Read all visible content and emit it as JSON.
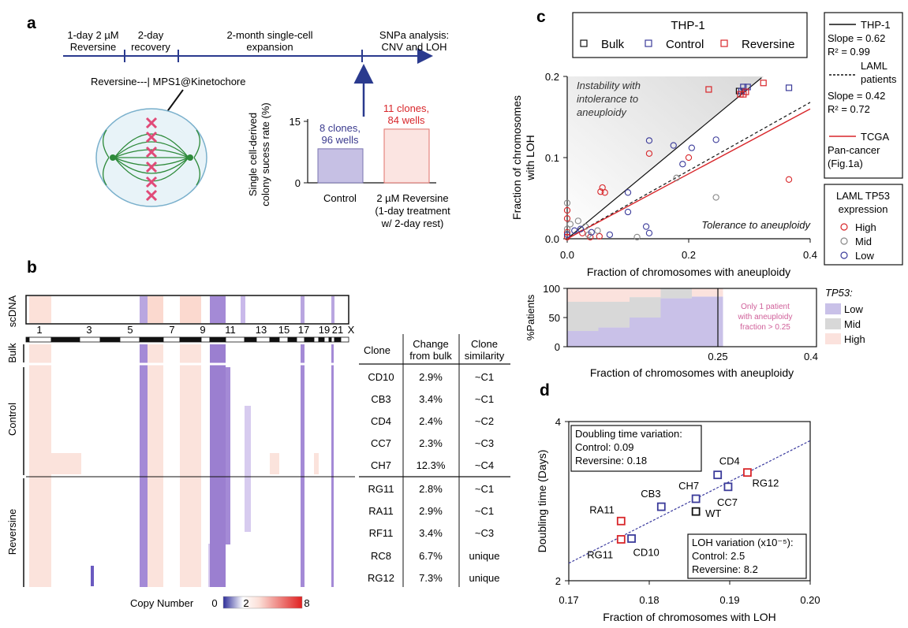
{
  "panel_labels": {
    "a": "a",
    "b": "b",
    "c": "c",
    "d": "d"
  },
  "panel_a": {
    "timeline": [
      {
        "lines": [
          "1-day 2 µM",
          "Reversine"
        ]
      },
      {
        "lines": [
          "2-day",
          "recovery"
        ]
      },
      {
        "lines": [
          "2-month single-cell",
          "expansion"
        ]
      },
      {
        "lines": [
          "SNPa analysis:",
          "CNV and LOH"
        ]
      }
    ],
    "mechanism_label": "Reversine---| MPS1@Kinetochore",
    "bar_ylabel": [
      "Single cell-derived",
      "colony sucess rate (%)"
    ],
    "bar_ytick_15": "15",
    "bar_ytick_0": "0",
    "bars": [
      {
        "label": "Control",
        "annot": [
          "8 clones,",
          "96 wells"
        ],
        "value": 8.3,
        "fill": "#c6c0e4",
        "stroke": "#7a74b0",
        "text_color": "#3a3a8e"
      },
      {
        "label": "2 µM Reversine",
        "annot": [
          "11 clones,",
          "84 wells"
        ],
        "value": 13.1,
        "fill": "#fbe4e1",
        "stroke": "#e0706a",
        "text_color": "#d8262a"
      }
    ],
    "bar_xlabel_extra": [
      "(1-day treatment",
      "w/ 2-day rest)"
    ]
  },
  "panel_b": {
    "sc_label": "scDNA",
    "chromosomes": [
      "1",
      "3",
      "5",
      "7",
      "9",
      "11",
      "13",
      "15",
      "17",
      "19",
      "21",
      "X"
    ],
    "group_labels": {
      "bulk": "Bulk",
      "control": "Control",
      "reversine": "Reversine"
    },
    "table_headers": [
      [
        "Clone"
      ],
      [
        "Change",
        "from bulk"
      ],
      [
        "Clone",
        "similarity"
      ]
    ],
    "rows": [
      {
        "clone": "CD10",
        "change": "2.9%",
        "sim": "~C1"
      },
      {
        "clone": "CB3",
        "change": "3.4%",
        "sim": "~C1"
      },
      {
        "clone": "CD4",
        "change": "2.4%",
        "sim": "~C2"
      },
      {
        "clone": "CC7",
        "change": "2.3%",
        "sim": "~C3"
      },
      {
        "clone": "CH7",
        "change": "12.3%",
        "sim": "~C4"
      },
      {
        "clone": "RG11",
        "change": "2.8%",
        "sim": "~C1"
      },
      {
        "clone": "RA11",
        "change": "2.9%",
        "sim": "~C1"
      },
      {
        "clone": "RF11",
        "change": "3.4%",
        "sim": "~C3"
      },
      {
        "clone": "RC8",
        "change": "6.7%",
        "sim": "unique"
      },
      {
        "clone": "RG12",
        "change": "7.3%",
        "sim": "unique"
      }
    ],
    "legend": {
      "title": "Copy Number",
      "ticks": [
        "0",
        "2",
        "8"
      ]
    }
  },
  "panel_c": {
    "scatter_legend_title": "THP-1",
    "scatter_legend": [
      "Bulk",
      "Control",
      "Reversine"
    ],
    "xlabel": "Fraction of chromosomes with aneuploidy",
    "ylabel": [
      "Fraction of chromosomes",
      "with LOH"
    ],
    "xticks": [
      "0.0",
      "0.2",
      "0.4"
    ],
    "yticks": [
      "0.0",
      "0.1",
      "0.2"
    ],
    "annotations": {
      "instability": [
        "Instability with",
        "intolerance to",
        "aneuploidy"
      ],
      "tolerance": "Tolerance to aneuploidy"
    },
    "fit_legend": [
      [
        "THP-1",
        "Slope = 0.62",
        "R² = 0.99"
      ],
      [
        "LAML",
        "patients",
        "Slope = 0.42",
        "R² = 0.72"
      ],
      [
        "TCGA",
        "Pan-cancer",
        "(Fig.1a)"
      ]
    ],
    "tp53_legend_title": [
      "LAML TP53",
      "expression"
    ],
    "tp53_legend": [
      "High",
      "Mid",
      "Low"
    ],
    "bar_ylabel": "%Patients",
    "bar_yticks": [
      "0",
      "50",
      "100"
    ],
    "bar_xticks": [
      "0.25",
      "0.4"
    ],
    "bar_xlabel": "Fraction of chromosomes with aneuploidy",
    "bar_note": [
      "Only 1 patient",
      "with aneuploidy",
      "fraction > 0.25"
    ],
    "bar_legend_title": "TP53:",
    "bar_legend": [
      "Low",
      "Mid",
      "High"
    ]
  },
  "chart_data": [
    {
      "type": "scatter",
      "title": "THP-1",
      "xlabel": "Fraction of chromosomes with aneuploidy",
      "ylabel": "Fraction of chromosomes with LOH",
      "xlim": [
        0,
        0.4
      ],
      "ylim": [
        0,
        0.2
      ],
      "fits": [
        {
          "name": "THP-1",
          "slope": 0.62,
          "r2": 0.99,
          "intercept": 0,
          "style": "solid",
          "color": "#111111"
        },
        {
          "name": "LAML patients",
          "slope": 0.42,
          "r2": 0.72,
          "intercept": 0,
          "style": "dashed",
          "color": "#111111"
        },
        {
          "name": "TCGA Pan-cancer",
          "slope": 0.4,
          "intercept": 0,
          "style": "solid",
          "color": "#d8262a"
        }
      ],
      "thp1_points": [
        {
          "group": "Bulk",
          "x": 0.283,
          "y": 0.182
        },
        {
          "group": "Control",
          "x": 0.29,
          "y": 0.187
        },
        {
          "group": "Control",
          "x": 0.297,
          "y": 0.187
        },
        {
          "group": "Control",
          "x": 0.287,
          "y": 0.182
        },
        {
          "group": "Control",
          "x": 0.365,
          "y": 0.186
        },
        {
          "group": "Reversine",
          "x": 0.233,
          "y": 0.184
        },
        {
          "group": "Reversine",
          "x": 0.29,
          "y": 0.178
        },
        {
          "group": "Reversine",
          "x": 0.285,
          "y": 0.178
        },
        {
          "group": "Reversine",
          "x": 0.323,
          "y": 0.192
        },
        {
          "group": "Reversine",
          "x": 0.294,
          "y": 0.181
        }
      ],
      "laml_points": [
        {
          "tp53": "High",
          "x": 0.0,
          "y": 0.035
        },
        {
          "tp53": "High",
          "x": 0.0,
          "y": 0.025
        },
        {
          "tp53": "High",
          "x": 0.0,
          "y": 0.008
        },
        {
          "tp53": "High",
          "x": 0.0,
          "y": 0.002
        },
        {
          "tp53": "High",
          "x": 0.025,
          "y": 0.007
        },
        {
          "tp53": "High",
          "x": 0.038,
          "y": 0.002
        },
        {
          "tp53": "High",
          "x": 0.055,
          "y": 0.058
        },
        {
          "tp53": "High",
          "x": 0.058,
          "y": 0.063
        },
        {
          "tp53": "High",
          "x": 0.062,
          "y": 0.057
        },
        {
          "tp53": "High",
          "x": 0.053,
          "y": 0.003
        },
        {
          "tp53": "High",
          "x": 0.135,
          "y": 0.105
        },
        {
          "tp53": "High",
          "x": 0.2,
          "y": 0.1
        },
        {
          "tp53": "High",
          "x": 0.365,
          "y": 0.073
        },
        {
          "tp53": "Mid",
          "x": 0.0,
          "y": 0.044
        },
        {
          "tp53": "Mid",
          "x": 0.0,
          "y": 0.012
        },
        {
          "tp53": "Mid",
          "x": 0.005,
          "y": 0.018
        },
        {
          "tp53": "Mid",
          "x": 0.018,
          "y": 0.022
        },
        {
          "tp53": "Mid",
          "x": 0.03,
          "y": 0.015
        },
        {
          "tp53": "Mid",
          "x": 0.035,
          "y": 0.005
        },
        {
          "tp53": "Mid",
          "x": 0.05,
          "y": 0.01
        },
        {
          "tp53": "Mid",
          "x": 0.115,
          "y": 0.002
        },
        {
          "tp53": "Mid",
          "x": 0.18,
          "y": 0.075
        },
        {
          "tp53": "Mid",
          "x": 0.245,
          "y": 0.051
        },
        {
          "tp53": "Low",
          "x": 0.0,
          "y": 0.005
        },
        {
          "tp53": "Low",
          "x": 0.012,
          "y": 0.01
        },
        {
          "tp53": "Low",
          "x": 0.022,
          "y": 0.012
        },
        {
          "tp53": "Low",
          "x": 0.04,
          "y": 0.008
        },
        {
          "tp53": "Low",
          "x": 0.07,
          "y": 0.005
        },
        {
          "tp53": "Low",
          "x": 0.1,
          "y": 0.057
        },
        {
          "tp53": "Low",
          "x": 0.1,
          "y": 0.033
        },
        {
          "tp53": "Low",
          "x": 0.13,
          "y": 0.015
        },
        {
          "tp53": "Low",
          "x": 0.135,
          "y": 0.121
        },
        {
          "tp53": "Low",
          "x": 0.135,
          "y": 0.007
        },
        {
          "tp53": "Low",
          "x": 0.175,
          "y": 0.115
        },
        {
          "tp53": "Low",
          "x": 0.19,
          "y": 0.092
        },
        {
          "tp53": "Low",
          "x": 0.205,
          "y": 0.112
        },
        {
          "tp53": "Low",
          "x": 0.245,
          "y": 0.122
        }
      ]
    },
    {
      "type": "area",
      "ylabel": "%Patients",
      "xlabel": "Fraction of chromosomes with aneuploidy",
      "xlim": [
        0,
        0.4
      ],
      "ylim": [
        0,
        100
      ],
      "x_edges": [
        0,
        0.05,
        0.1,
        0.15,
        0.2,
        0.25
      ],
      "series": [
        {
          "name": "Low",
          "values": [
            27,
            33,
            50,
            83,
            86
          ]
        },
        {
          "name": "Mid",
          "values": [
            50,
            44,
            35,
            17,
            0
          ]
        },
        {
          "name": "High",
          "values": [
            23,
            23,
            15,
            0,
            14
          ]
        }
      ]
    },
    {
      "type": "scatter",
      "xlabel": "Fraction of chromosomes with LOH",
      "ylabel": "Doubling time (Days)",
      "xlim": [
        0.17,
        0.2
      ],
      "ylim": [
        2,
        4
      ],
      "xticks": [
        "0.17",
        "0.18",
        "0.19",
        "0.20"
      ],
      "yticks": [
        "4",
        "2"
      ],
      "variation_box": [
        "Doubling time variation:",
        "Control: 0.09",
        "Reversine: 0.18"
      ],
      "loh_box": [
        "LOH variation (x10⁻⁵):",
        "Control: 2.5",
        "Reversine: 8.2"
      ],
      "points": [
        {
          "name": "RA11",
          "group": "Reversine",
          "x": 0.1765,
          "y": 2.75
        },
        {
          "name": "RG11",
          "group": "Reversine",
          "x": 0.1765,
          "y": 2.52
        },
        {
          "name": "CD10",
          "group": "Control",
          "x": 0.1778,
          "y": 2.53
        },
        {
          "name": "CB3",
          "group": "Control",
          "x": 0.1815,
          "y": 2.93
        },
        {
          "name": "CH7",
          "group": "Control",
          "x": 0.1858,
          "y": 3.03
        },
        {
          "name": "WT",
          "group": "Bulk",
          "x": 0.1858,
          "y": 2.87
        },
        {
          "name": "CC7",
          "group": "Control",
          "x": 0.1898,
          "y": 3.18
        },
        {
          "name": "CD4",
          "group": "Control",
          "x": 0.1885,
          "y": 3.33
        },
        {
          "name": "RG12",
          "group": "Reversine",
          "x": 0.1922,
          "y": 3.36
        }
      ],
      "fit": {
        "x": [
          0.17,
          0.2
        ],
        "y": [
          2.22,
          3.76
        ],
        "style": "dotted",
        "color": "#3a3a9e"
      }
    }
  ],
  "colors": {
    "control": "#3b3b9a",
    "reversine": "#d8262a",
    "bulk": "#111111",
    "low": "#c9c1e8",
    "mid": "#d8d8d8",
    "high": "#fbe2dd",
    "loss": "#9b7fd0",
    "gain": "#f6c8bc"
  }
}
